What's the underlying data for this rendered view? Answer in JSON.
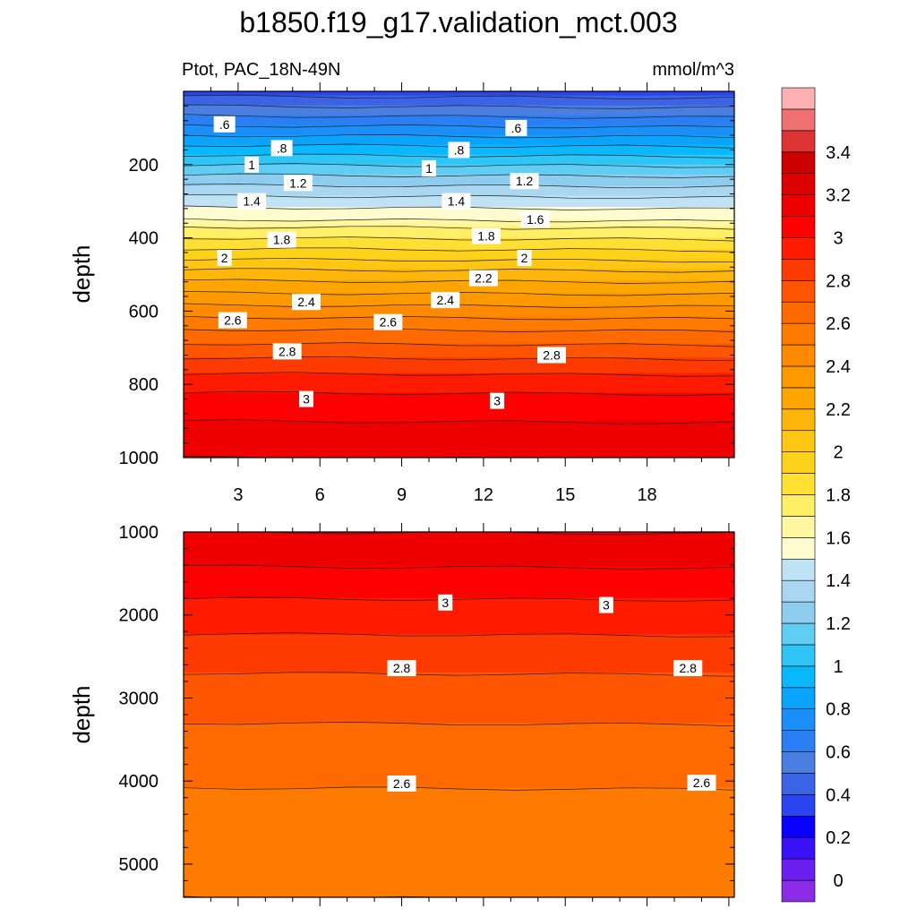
{
  "chart_data": {
    "type": "heatmap",
    "title": "b1850.f19_g17.validation_mct.003",
    "subtitle_left": "Ptot, PAC_18N-49N",
    "subtitle_right": "mmol/m^3",
    "colorbar": {
      "levels": [
        -0.1,
        0.0,
        0.1,
        0.2,
        0.3,
        0.4,
        0.5,
        0.6,
        0.7,
        0.8,
        0.9,
        1.0,
        1.1,
        1.2,
        1.3,
        1.4,
        1.5,
        1.6,
        1.7,
        1.8,
        1.9,
        2.0,
        2.1,
        2.2,
        2.3,
        2.4,
        2.5,
        2.6,
        2.7,
        2.8,
        2.9,
        3.0,
        3.1,
        3.2,
        3.3,
        3.4,
        3.5,
        3.6
      ],
      "colors": [
        "#8a2be6",
        "#6a1ff0",
        "#3a10f5",
        "#0a00ff",
        "#2a45f0",
        "#3a63e6",
        "#4a7ee0",
        "#2a7ff5",
        "#1a8ffa",
        "#0aa4ff",
        "#0ab8ff",
        "#2fc6f7",
        "#60cdf5",
        "#8ecdee",
        "#a9d7f1",
        "#bfe3f4",
        "#fffdd0",
        "#fff8a0",
        "#ffef66",
        "#ffe033",
        "#ffd21a",
        "#ffc614",
        "#ffb60a",
        "#ffa500",
        "#ff9900",
        "#ff8a00",
        "#ff7a00",
        "#ff6a00",
        "#ff5500",
        "#ff3a00",
        "#ff1a00",
        "#ff0000",
        "#ee0000",
        "#dd0000",
        "#cc0000",
        "#dd3333",
        "#ee7070",
        "#ffb0b0"
      ],
      "tick_labels": [
        "0",
        "0.2",
        "0.4",
        "0.6",
        "0.8",
        "1",
        "1.2",
        "1.4",
        "1.6",
        "1.8",
        "2",
        "2.2",
        "2.4",
        "2.6",
        "2.8",
        "3",
        "3.2",
        "3.4"
      ]
    },
    "panels": [
      {
        "ylabel": "depth",
        "xlim": [
          1,
          21.2
        ],
        "ylim_top": 0,
        "ylim_bottom": 1000,
        "yticks": [
          "200",
          "400",
          "600",
          "800",
          "1000"
        ],
        "xticks": [
          "3",
          "6",
          "9",
          "12",
          "15",
          "18"
        ],
        "profile": {
          "depth": [
            0,
            40,
            80,
            120,
            160,
            200,
            250,
            300,
            350,
            370,
            400,
            450,
            500,
            550,
            600,
            650,
            700,
            750,
            800,
            850,
            900,
            950,
            1000
          ],
          "value": [
            0.35,
            0.5,
            0.65,
            0.8,
            0.95,
            1.1,
            1.28,
            1.45,
            1.6,
            1.7,
            1.8,
            1.97,
            2.15,
            2.3,
            2.45,
            2.6,
            2.73,
            2.86,
            2.96,
            3.05,
            3.1,
            3.15,
            3.2
          ]
        },
        "contour_labels": [
          {
            "x": 2.5,
            "depth": 90,
            "text": ".6"
          },
          {
            "x": 13.2,
            "depth": 100,
            "text": ".6"
          },
          {
            "x": 4.6,
            "depth": 155,
            "text": ".8"
          },
          {
            "x": 11.1,
            "depth": 160,
            "text": ".8"
          },
          {
            "x": 3.5,
            "depth": 200,
            "text": "1"
          },
          {
            "x": 10.0,
            "depth": 210,
            "text": "1"
          },
          {
            "x": 5.2,
            "depth": 250,
            "text": "1.2"
          },
          {
            "x": 13.5,
            "depth": 245,
            "text": "1.2"
          },
          {
            "x": 3.5,
            "depth": 300,
            "text": "1.4"
          },
          {
            "x": 11.0,
            "depth": 300,
            "text": "1.4"
          },
          {
            "x": 13.9,
            "depth": 350,
            "text": "1.6"
          },
          {
            "x": 4.6,
            "depth": 405,
            "text": "1.8"
          },
          {
            "x": 12.1,
            "depth": 395,
            "text": "1.8"
          },
          {
            "x": 2.5,
            "depth": 455,
            "text": "2"
          },
          {
            "x": 13.5,
            "depth": 455,
            "text": "2"
          },
          {
            "x": 12.0,
            "depth": 510,
            "text": "2.2"
          },
          {
            "x": 5.5,
            "depth": 575,
            "text": "2.4"
          },
          {
            "x": 10.6,
            "depth": 570,
            "text": "2.4"
          },
          {
            "x": 2.8,
            "depth": 625,
            "text": "2.6"
          },
          {
            "x": 8.5,
            "depth": 630,
            "text": "2.6"
          },
          {
            "x": 4.8,
            "depth": 710,
            "text": "2.8"
          },
          {
            "x": 14.5,
            "depth": 720,
            "text": "2.8"
          },
          {
            "x": 5.5,
            "depth": 840,
            "text": "3"
          },
          {
            "x": 12.5,
            "depth": 845,
            "text": "3"
          }
        ]
      },
      {
        "ylabel": "depth",
        "xlim": [
          1,
          21.2
        ],
        "ylim_top": 1000,
        "ylim_bottom": 5400,
        "yticks": [
          "1000",
          "2000",
          "3000",
          "4000",
          "5000"
        ],
        "xticks": [],
        "profile": {
          "depth": [
            1000,
            1200,
            1500,
            1800,
            2100,
            2400,
            2700,
            3000,
            3300,
            3600,
            3900,
            4200,
            4600,
            5000,
            5400
          ],
          "value": [
            3.2,
            3.15,
            3.08,
            3.0,
            2.93,
            2.86,
            2.8,
            2.75,
            2.7,
            2.67,
            2.63,
            2.58,
            2.55,
            2.52,
            2.5
          ]
        },
        "contour_labels": [
          {
            "x": 10.6,
            "depth": 1850,
            "text": "3"
          },
          {
            "x": 16.5,
            "depth": 1880,
            "text": "3"
          },
          {
            "x": 9.0,
            "depth": 2640,
            "text": "2.8"
          },
          {
            "x": 19.5,
            "depth": 2640,
            "text": "2.8"
          },
          {
            "x": 9.0,
            "depth": 4030,
            "text": "2.6"
          },
          {
            "x": 20.0,
            "depth": 4020,
            "text": "2.6"
          }
        ]
      }
    ]
  }
}
